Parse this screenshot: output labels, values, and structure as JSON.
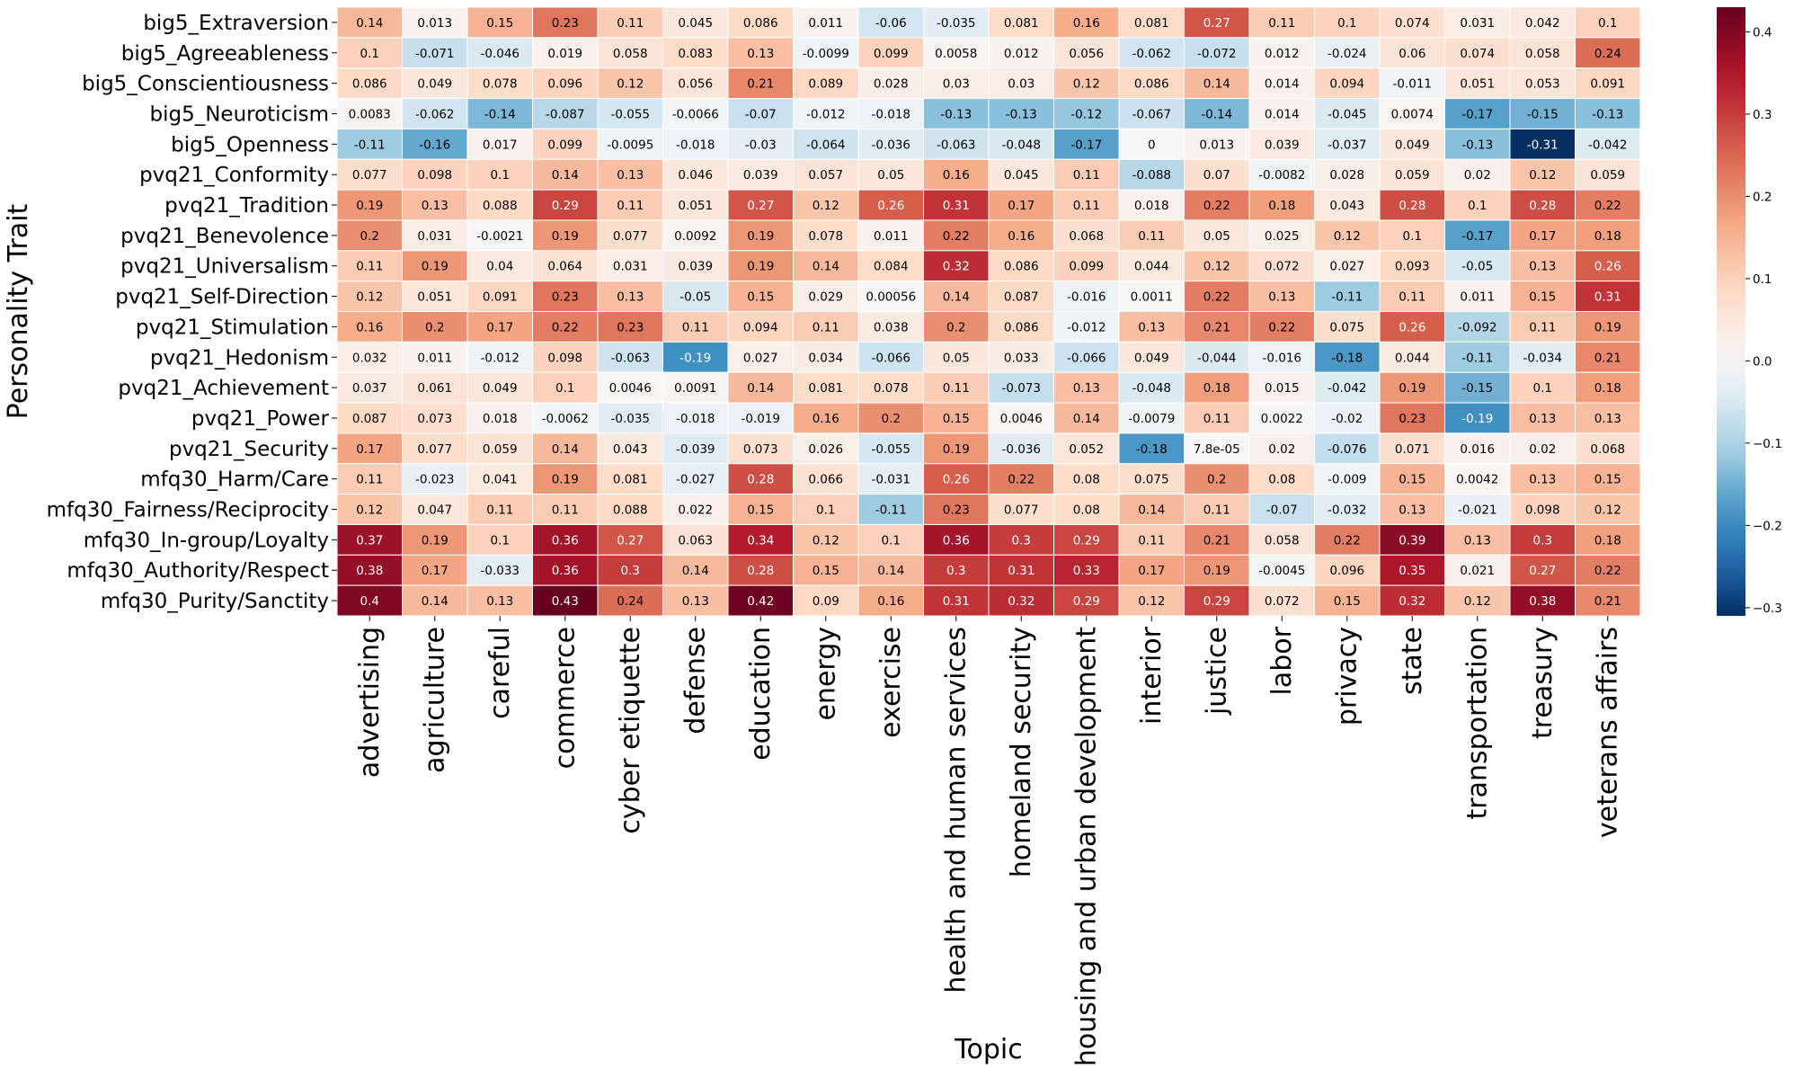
{
  "chart_data": {
    "type": "heatmap",
    "xlabel": "Topic",
    "ylabel": "Personality Trait",
    "colormap": "RdBu_r",
    "vmin": -0.31,
    "vmax": 0.43,
    "colorbar_ticks": [
      -0.3,
      -0.2,
      -0.1,
      0.0,
      0.1,
      0.2,
      0.3,
      0.4
    ],
    "colorbar_tick_labels": [
      "−0.3",
      "−0.2",
      "−0.1",
      "0.0",
      "0.1",
      "0.2",
      "0.3",
      "0.4"
    ],
    "x_categories": [
      "advertising",
      "agriculture",
      "careful",
      "commerce",
      "cyber etiquette",
      "defense",
      "education",
      "energy",
      "exercise",
      "health and human services",
      "homeland security",
      "housing and urban development",
      "interior",
      "justice",
      "labor",
      "privacy",
      "state",
      "transportation",
      "treasury",
      "veterans affairs"
    ],
    "y_categories": [
      "big5_Extraversion",
      "big5_Agreeableness",
      "big5_Conscientiousness",
      "big5_Neuroticism",
      "big5_Openness",
      "pvq21_Conformity",
      "pvq21_Tradition",
      "pvq21_Benevolence",
      "pvq21_Universalism",
      "pvq21_Self-Direction",
      "pvq21_Stimulation",
      "pvq21_Hedonism",
      "pvq21_Achievement",
      "pvq21_Power",
      "pvq21_Security",
      "mfq30_Harm/Care",
      "mfq30_Fairness/Reciprocity",
      "mfq30_In-group/Loyalty",
      "mfq30_Authority/Respect",
      "mfq30_Purity/Sanctity"
    ],
    "values": [
      [
        0.14,
        0.013,
        0.15,
        0.23,
        0.11,
        0.045,
        0.086,
        0.011,
        -0.06,
        -0.035,
        0.081,
        0.16,
        0.081,
        0.27,
        0.11,
        0.1,
        0.074,
        0.031,
        0.042,
        0.1
      ],
      [
        0.1,
        -0.071,
        -0.046,
        0.019,
        0.058,
        0.083,
        0.13,
        -0.0099,
        0.099,
        0.0058,
        0.012,
        0.056,
        -0.062,
        -0.072,
        0.012,
        -0.024,
        0.06,
        0.074,
        0.058,
        0.24
      ],
      [
        0.086,
        0.049,
        0.078,
        0.096,
        0.12,
        0.056,
        0.21,
        0.089,
        0.028,
        0.03,
        0.03,
        0.12,
        0.086,
        0.14,
        0.014,
        0.094,
        -0.011,
        0.051,
        0.053,
        0.091
      ],
      [
        0.0083,
        -0.062,
        -0.14,
        -0.087,
        -0.055,
        -0.0066,
        -0.07,
        -0.012,
        -0.018,
        -0.13,
        -0.13,
        -0.12,
        -0.067,
        -0.14,
        0.014,
        -0.045,
        0.0074,
        -0.17,
        -0.15,
        -0.13
      ],
      [
        -0.11,
        -0.16,
        0.017,
        0.099,
        -0.0095,
        -0.018,
        -0.03,
        -0.064,
        -0.036,
        -0.063,
        -0.048,
        -0.17,
        0,
        0.013,
        0.039,
        -0.037,
        0.049,
        -0.13,
        -0.31,
        -0.042
      ],
      [
        0.077,
        0.098,
        0.1,
        0.14,
        0.13,
        0.046,
        0.039,
        0.057,
        0.05,
        0.16,
        0.045,
        0.11,
        -0.088,
        0.07,
        -0.0082,
        0.028,
        0.059,
        0.02,
        0.12,
        0.059
      ],
      [
        0.19,
        0.13,
        0.088,
        0.29,
        0.11,
        0.051,
        0.27,
        0.12,
        0.26,
        0.31,
        0.17,
        0.11,
        0.018,
        0.22,
        0.18,
        0.043,
        0.28,
        0.1,
        0.28,
        0.22
      ],
      [
        0.2,
        0.031,
        -0.0021,
        0.19,
        0.077,
        0.0092,
        0.19,
        0.078,
        0.011,
        0.22,
        0.16,
        0.068,
        0.11,
        0.05,
        0.025,
        0.12,
        0.1,
        -0.17,
        0.17,
        0.18
      ],
      [
        0.11,
        0.19,
        0.04,
        0.064,
        0.031,
        0.039,
        0.19,
        0.14,
        0.084,
        0.32,
        0.086,
        0.099,
        0.044,
        0.12,
        0.072,
        0.027,
        0.093,
        -0.05,
        0.13,
        0.26
      ],
      [
        0.12,
        0.051,
        0.091,
        0.23,
        0.13,
        -0.05,
        0.15,
        0.029,
        0.00056,
        0.14,
        0.087,
        -0.016,
        0.0011,
        0.22,
        0.13,
        -0.11,
        0.11,
        0.011,
        0.15,
        0.31
      ],
      [
        0.16,
        0.2,
        0.17,
        0.22,
        0.23,
        0.11,
        0.094,
        0.11,
        0.038,
        0.2,
        0.086,
        -0.012,
        0.13,
        0.21,
        0.22,
        0.075,
        0.26,
        -0.092,
        0.11,
        0.19
      ],
      [
        0.032,
        0.011,
        -0.012,
        0.098,
        -0.063,
        -0.19,
        0.027,
        0.034,
        -0.066,
        0.05,
        0.033,
        -0.066,
        0.049,
        -0.044,
        -0.016,
        -0.18,
        0.044,
        -0.11,
        -0.034,
        0.21
      ],
      [
        0.037,
        0.061,
        0.049,
        0.1,
        0.0046,
        0.0091,
        0.14,
        0.081,
        0.078,
        0.11,
        -0.073,
        0.13,
        -0.048,
        0.18,
        0.015,
        -0.042,
        0.19,
        -0.15,
        0.1,
        0.18
      ],
      [
        0.087,
        0.073,
        0.018,
        -0.0062,
        -0.035,
        -0.018,
        -0.019,
        0.16,
        0.2,
        0.15,
        0.0046,
        0.14,
        -0.0079,
        0.11,
        0.0022,
        -0.02,
        0.23,
        -0.19,
        0.13,
        0.13
      ],
      [
        0.17,
        0.077,
        0.059,
        0.14,
        0.043,
        -0.039,
        0.073,
        0.026,
        -0.055,
        0.19,
        -0.036,
        0.052,
        -0.18,
        7.8e-05,
        0.02,
        -0.076,
        0.071,
        0.016,
        0.02,
        0.068
      ],
      [
        0.11,
        -0.023,
        0.041,
        0.19,
        0.081,
        -0.027,
        0.28,
        0.066,
        -0.031,
        0.26,
        0.22,
        0.08,
        0.075,
        0.2,
        0.08,
        -0.009,
        0.15,
        0.0042,
        0.13,
        0.15
      ],
      [
        0.12,
        0.047,
        0.11,
        0.11,
        0.088,
        0.022,
        0.15,
        0.1,
        -0.11,
        0.23,
        0.077,
        0.08,
        0.14,
        0.11,
        -0.07,
        -0.032,
        0.13,
        -0.021,
        0.098,
        0.12
      ],
      [
        0.37,
        0.19,
        0.1,
        0.36,
        0.27,
        0.063,
        0.34,
        0.12,
        0.1,
        0.36,
        0.3,
        0.29,
        0.11,
        0.21,
        0.058,
        0.22,
        0.39,
        0.13,
        0.3,
        0.18
      ],
      [
        0.38,
        0.17,
        -0.033,
        0.36,
        0.3,
        0.14,
        0.28,
        0.15,
        0.14,
        0.3,
        0.31,
        0.33,
        0.17,
        0.19,
        -0.0045,
        0.096,
        0.35,
        0.021,
        0.27,
        0.22
      ],
      [
        0.4,
        0.14,
        0.13,
        0.43,
        0.24,
        0.13,
        0.42,
        0.09,
        0.16,
        0.31,
        0.32,
        0.29,
        0.12,
        0.29,
        0.072,
        0.15,
        0.32,
        0.12,
        0.38,
        0.21
      ]
    ],
    "labels": [
      [
        "0.14",
        "0.013",
        "0.15",
        "0.23",
        "0.11",
        "0.045",
        "0.086",
        "0.011",
        "-0.06",
        "-0.035",
        "0.081",
        "0.16",
        "0.081",
        "0.27",
        "0.11",
        "0.1",
        "0.074",
        "0.031",
        "0.042",
        "0.1"
      ],
      [
        "0.1",
        "-0.071",
        "-0.046",
        "0.019",
        "0.058",
        "0.083",
        "0.13",
        "-0.0099",
        "0.099",
        "0.0058",
        "0.012",
        "0.056",
        "-0.062",
        "-0.072",
        "0.012",
        "-0.024",
        "0.06",
        "0.074",
        "0.058",
        "0.24"
      ],
      [
        "0.086",
        "0.049",
        "0.078",
        "0.096",
        "0.12",
        "0.056",
        "0.21",
        "0.089",
        "0.028",
        "0.03",
        "0.03",
        "0.12",
        "0.086",
        "0.14",
        "0.014",
        "0.094",
        "-0.011",
        "0.051",
        "0.053",
        "0.091"
      ],
      [
        "0.0083",
        "-0.062",
        "-0.14",
        "-0.087",
        "-0.055",
        "-0.0066",
        "-0.07",
        "-0.012",
        "-0.018",
        "-0.13",
        "-0.13",
        "-0.12",
        "-0.067",
        "-0.14",
        "0.014",
        "-0.045",
        "0.0074",
        "-0.17",
        "-0.15",
        "-0.13"
      ],
      [
        "-0.11",
        "-0.16",
        "0.017",
        "0.099",
        "-0.0095",
        "-0.018",
        "-0.03",
        "-0.064",
        "-0.036",
        "-0.063",
        "-0.048",
        "-0.17",
        "0",
        "0.013",
        "0.039",
        "-0.037",
        "0.049",
        "-0.13",
        "-0.31",
        "-0.042"
      ],
      [
        "0.077",
        "0.098",
        "0.1",
        "0.14",
        "0.13",
        "0.046",
        "0.039",
        "0.057",
        "0.05",
        "0.16",
        "0.045",
        "0.11",
        "-0.088",
        "0.07",
        "-0.0082",
        "0.028",
        "0.059",
        "0.02",
        "0.12",
        "0.059"
      ],
      [
        "0.19",
        "0.13",
        "0.088",
        "0.29",
        "0.11",
        "0.051",
        "0.27",
        "0.12",
        "0.26",
        "0.31",
        "0.17",
        "0.11",
        "0.018",
        "0.22",
        "0.18",
        "0.043",
        "0.28",
        "0.1",
        "0.28",
        "0.22"
      ],
      [
        "0.2",
        "0.031",
        "-0.0021",
        "0.19",
        "0.077",
        "0.0092",
        "0.19",
        "0.078",
        "0.011",
        "0.22",
        "0.16",
        "0.068",
        "0.11",
        "0.05",
        "0.025",
        "0.12",
        "0.1",
        "-0.17",
        "0.17",
        "0.18"
      ],
      [
        "0.11",
        "0.19",
        "0.04",
        "0.064",
        "0.031",
        "0.039",
        "0.19",
        "0.14",
        "0.084",
        "0.32",
        "0.086",
        "0.099",
        "0.044",
        "0.12",
        "0.072",
        "0.027",
        "0.093",
        "-0.05",
        "0.13",
        "0.26"
      ],
      [
        "0.12",
        "0.051",
        "0.091",
        "0.23",
        "0.13",
        "-0.05",
        "0.15",
        "0.029",
        "0.00056",
        "0.14",
        "0.087",
        "-0.016",
        "0.0011",
        "0.22",
        "0.13",
        "-0.11",
        "0.11",
        "0.011",
        "0.15",
        "0.31"
      ],
      [
        "0.16",
        "0.2",
        "0.17",
        "0.22",
        "0.23",
        "0.11",
        "0.094",
        "0.11",
        "0.038",
        "0.2",
        "0.086",
        "-0.012",
        "0.13",
        "0.21",
        "0.22",
        "0.075",
        "0.26",
        "-0.092",
        "0.11",
        "0.19"
      ],
      [
        "0.032",
        "0.011",
        "-0.012",
        "0.098",
        "-0.063",
        "-0.19",
        "0.027",
        "0.034",
        "-0.066",
        "0.05",
        "0.033",
        "-0.066",
        "0.049",
        "-0.044",
        "-0.016",
        "-0.18",
        "0.044",
        "-0.11",
        "-0.034",
        "0.21"
      ],
      [
        "0.037",
        "0.061",
        "0.049",
        "0.1",
        "0.0046",
        "0.0091",
        "0.14",
        "0.081",
        "0.078",
        "0.11",
        "-0.073",
        "0.13",
        "-0.048",
        "0.18",
        "0.015",
        "-0.042",
        "0.19",
        "-0.15",
        "0.1",
        "0.18"
      ],
      [
        "0.087",
        "0.073",
        "0.018",
        "-0.0062",
        "-0.035",
        "-0.018",
        "-0.019",
        "0.16",
        "0.2",
        "0.15",
        "0.0046",
        "0.14",
        "-0.0079",
        "0.11",
        "0.0022",
        "-0.02",
        "0.23",
        "-0.19",
        "0.13",
        "0.13"
      ],
      [
        "0.17",
        "0.077",
        "0.059",
        "0.14",
        "0.043",
        "-0.039",
        "0.073",
        "0.026",
        "-0.055",
        "0.19",
        "-0.036",
        "0.052",
        "-0.18",
        "7.8e-05",
        "0.02",
        "-0.076",
        "0.071",
        "0.016",
        "0.02",
        "0.068"
      ],
      [
        "0.11",
        "-0.023",
        "0.041",
        "0.19",
        "0.081",
        "-0.027",
        "0.28",
        "0.066",
        "-0.031",
        "0.26",
        "0.22",
        "0.08",
        "0.075",
        "0.2",
        "0.08",
        "-0.009",
        "0.15",
        "0.0042",
        "0.13",
        "0.15"
      ],
      [
        "0.12",
        "0.047",
        "0.11",
        "0.11",
        "0.088",
        "0.022",
        "0.15",
        "0.1",
        "-0.11",
        "0.23",
        "0.077",
        "0.08",
        "0.14",
        "0.11",
        "-0.07",
        "-0.032",
        "0.13",
        "-0.021",
        "0.098",
        "0.12"
      ],
      [
        "0.37",
        "0.19",
        "0.1",
        "0.36",
        "0.27",
        "0.063",
        "0.34",
        "0.12",
        "0.1",
        "0.36",
        "0.3",
        "0.29",
        "0.11",
        "0.21",
        "0.058",
        "0.22",
        "0.39",
        "0.13",
        "0.3",
        "0.18"
      ],
      [
        "0.38",
        "0.17",
        "-0.033",
        "0.36",
        "0.3",
        "0.14",
        "0.28",
        "0.15",
        "0.14",
        "0.3",
        "0.31",
        "0.33",
        "0.17",
        "0.19",
        "-0.0045",
        "0.096",
        "0.35",
        "0.021",
        "0.27",
        "0.22"
      ],
      [
        "0.4",
        "0.14",
        "0.13",
        "0.43",
        "0.24",
        "0.13",
        "0.42",
        "0.09",
        "0.16",
        "0.31",
        "0.32",
        "0.29",
        "0.12",
        "0.29",
        "0.072",
        "0.15",
        "0.32",
        "0.12",
        "0.38",
        "0.21"
      ]
    ],
    "grid": false,
    "colorbar": "right"
  }
}
